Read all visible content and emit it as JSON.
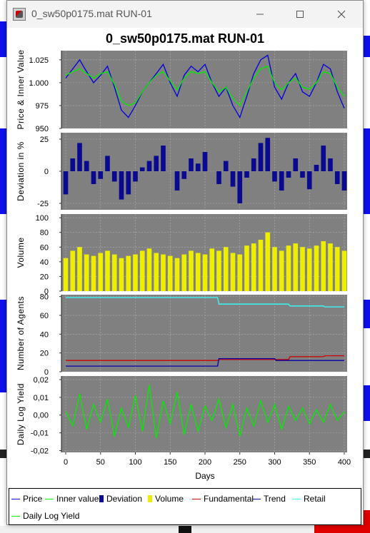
{
  "window": {
    "title": "0_sw50p0175.mat RUN-01",
    "minimize_icon": "minimize-icon",
    "maximize_icon": "maximize-icon",
    "close_icon": "close-icon"
  },
  "colors": {
    "plot_bg": "#808080",
    "price": "#0000dd",
    "inner": "#00ee00",
    "deviation": "#0a0a90",
    "volume": "#eeee00",
    "fundamental": "#cc0000",
    "trend": "#0000aa",
    "retail": "#33ffff",
    "yield": "#00ee00"
  },
  "legend": [
    {
      "label": "Price",
      "color": "#0000dd",
      "kind": "line"
    },
    {
      "label": "Inner value",
      "color": "#00ee00",
      "kind": "line"
    },
    {
      "label": "Deviation",
      "color": "#0a0a90",
      "kind": "box"
    },
    {
      "label": "Volume",
      "color": "#eeee00",
      "kind": "box"
    },
    {
      "label": "Fundamental",
      "color": "#cc0000",
      "kind": "line"
    },
    {
      "label": "Trend",
      "color": "#0000aa",
      "kind": "line"
    },
    {
      "label": "Retail",
      "color": "#33ffff",
      "kind": "line"
    },
    {
      "label": "Daily Log Yield",
      "color": "#00ee00",
      "kind": "line"
    }
  ],
  "chart_data": {
    "title": "0_sw50p0175.mat RUN-01",
    "xlabel": "Days",
    "xlim": [
      0,
      400
    ],
    "x_ticks": [
      "0",
      "50",
      "100",
      "150",
      "200",
      "250",
      "300",
      "350",
      "400"
    ],
    "grid": true,
    "panels": [
      {
        "id": "price",
        "type": "line",
        "ylabel": "Price & Inner Value",
        "ylim": [
          950,
          1035
        ],
        "y_ticks": [
          "1.025",
          "1.000",
          "975",
          "950"
        ],
        "y_tick_values": [
          1025,
          1000,
          975,
          950
        ],
        "series": [
          {
            "name": "Price",
            "color": "#0000dd",
            "x": [
              0,
              10,
              20,
              30,
              40,
              50,
              60,
              70,
              80,
              90,
              100,
              110,
              120,
              130,
              140,
              150,
              160,
              170,
              180,
              190,
              200,
              210,
              220,
              230,
              240,
              250,
              260,
              270,
              280,
              290,
              300,
              310,
              320,
              330,
              340,
              350,
              360,
              370,
              380,
              390,
              400
            ],
            "values": [
              1005,
              1015,
              1025,
              1012,
              1000,
              1008,
              1018,
              995,
              970,
              962,
              975,
              990,
              1000,
              1010,
              1020,
              1000,
              985,
              1008,
              1018,
              1012,
              1020,
              1000,
              985,
              995,
              975,
              962,
              985,
              1010,
              1025,
              1030,
              995,
              982,
              1000,
              1010,
              990,
              985,
              1000,
              1020,
              1015,
              990,
              972
            ]
          },
          {
            "name": "Inner value",
            "color": "#00ee00",
            "x": [
              0,
              10,
              20,
              30,
              40,
              50,
              60,
              70,
              80,
              90,
              100,
              110,
              120,
              130,
              140,
              150,
              160,
              170,
              180,
              190,
              200,
              210,
              220,
              230,
              240,
              250,
              260,
              270,
              280,
              290,
              300,
              310,
              320,
              330,
              340,
              350,
              360,
              370,
              380,
              390,
              400
            ],
            "values": [
              1008,
              1012,
              1015,
              1010,
              1005,
              1010,
              1012,
              998,
              980,
              975,
              978,
              990,
              1000,
              1008,
              1012,
              1002,
              992,
              1005,
              1012,
              1010,
              1012,
              1000,
              990,
              995,
              983,
              975,
              990,
              1005,
              1015,
              1018,
              1000,
              992,
              1000,
              1005,
              995,
              993,
              1000,
              1012,
              1010,
              995,
              985
            ]
          }
        ]
      },
      {
        "id": "deviation",
        "type": "bar",
        "ylabel": "Deviation in %",
        "ylim": [
          -30,
          30
        ],
        "y_ticks": [
          "25",
          "0",
          "-25"
        ],
        "y_tick_values": [
          25,
          0,
          -25
        ],
        "series": [
          {
            "name": "Deviation",
            "color": "#0a0a90",
            "x": [
              0,
              10,
              20,
              30,
              40,
              50,
              60,
              70,
              80,
              90,
              100,
              110,
              120,
              130,
              140,
              150,
              160,
              170,
              180,
              190,
              200,
              210,
              220,
              230,
              240,
              250,
              260,
              270,
              280,
              290,
              300,
              310,
              320,
              330,
              340,
              350,
              360,
              370,
              380,
              390,
              400
            ],
            "values": [
              -18,
              10,
              22,
              8,
              -10,
              -6,
              12,
              -8,
              -22,
              -18,
              -8,
              3,
              8,
              12,
              20,
              0,
              -15,
              -6,
              10,
              6,
              15,
              0,
              -10,
              8,
              -12,
              -25,
              -5,
              10,
              22,
              26,
              -8,
              -15,
              -5,
              10,
              -5,
              -14,
              5,
              20,
              10,
              -10,
              -15
            ]
          }
        ]
      },
      {
        "id": "volume",
        "type": "bar",
        "ylabel": "Volume",
        "ylim": [
          0,
          105
        ],
        "y_ticks": [
          "100",
          "80",
          "60",
          "40",
          "20",
          "0"
        ],
        "y_tick_values": [
          100,
          80,
          60,
          40,
          20,
          0
        ],
        "series": [
          {
            "name": "Volume",
            "color": "#eeee00",
            "x": [
              0,
              10,
              20,
              30,
              40,
              50,
              60,
              70,
              80,
              90,
              100,
              110,
              120,
              130,
              140,
              150,
              160,
              170,
              180,
              190,
              200,
              210,
              220,
              230,
              240,
              250,
              260,
              270,
              280,
              290,
              300,
              310,
              320,
              330,
              340,
              350,
              360,
              370,
              380,
              390,
              400
            ],
            "values": [
              45,
              55,
              60,
              50,
              48,
              52,
              55,
              50,
              45,
              48,
              50,
              55,
              58,
              52,
              50,
              48,
              45,
              50,
              55,
              52,
              50,
              58,
              55,
              60,
              52,
              50,
              62,
              65,
              70,
              80,
              60,
              55,
              62,
              65,
              60,
              58,
              62,
              68,
              65,
              60,
              55
            ]
          }
        ]
      },
      {
        "id": "agents",
        "type": "line",
        "ylabel": "Number of Agents",
        "ylim": [
          0,
          82
        ],
        "y_ticks": [
          "80",
          "60",
          "40",
          "20",
          "0"
        ],
        "y_tick_values": [
          80,
          60,
          40,
          20,
          0
        ],
        "series": [
          {
            "name": "Fundamental",
            "color": "#cc0000",
            "x": [
              0,
              218,
              220,
              320,
              322,
              370,
              372,
              400
            ],
            "values": [
              12,
              12,
              13,
              13,
              16,
              16,
              17,
              17
            ]
          },
          {
            "name": "Trend",
            "color": "#0000aa",
            "x": [
              0,
              218,
              220,
              300,
              302,
              400
            ],
            "values": [
              6,
              6,
              14,
              14,
              12,
              12
            ]
          },
          {
            "name": "Retail",
            "color": "#33ffff",
            "x": [
              0,
              218,
              220,
              320,
              322,
              370,
              372,
              400
            ],
            "values": [
              79,
              79,
              72,
              72,
              70,
              70,
              69,
              69
            ]
          }
        ]
      },
      {
        "id": "yield",
        "type": "line",
        "ylabel": "Daily Log Yield",
        "ylim": [
          -0.021,
          0.022
        ],
        "y_ticks": [
          "0,02",
          "0,01",
          "0,00",
          "-0,01",
          "-0,02"
        ],
        "y_tick_values": [
          0.02,
          0.01,
          0.0,
          -0.01,
          -0.02
        ],
        "series": [
          {
            "name": "Daily Log Yield",
            "color": "#00ee00",
            "x": [
              0,
              10,
              20,
              30,
              40,
              50,
              60,
              70,
              80,
              90,
              100,
              110,
              120,
              130,
              140,
              150,
              160,
              170,
              180,
              190,
              200,
              210,
              220,
              230,
              240,
              250,
              260,
              270,
              280,
              290,
              300,
              310,
              320,
              330,
              340,
              350,
              360,
              370,
              380,
              390,
              400
            ],
            "values": [
              0.002,
              -0.006,
              0.012,
              -0.008,
              0.006,
              -0.004,
              0.009,
              -0.012,
              0.004,
              -0.007,
              0.011,
              -0.009,
              0.017,
              -0.013,
              0.008,
              -0.005,
              0.013,
              -0.011,
              0.006,
              -0.009,
              0.005,
              -0.003,
              0.009,
              -0.007,
              0.006,
              -0.012,
              0.004,
              -0.006,
              0.008,
              -0.004,
              0.006,
              -0.008,
              0.005,
              -0.003,
              0.004,
              -0.005,
              0.003,
              -0.004,
              0.006,
              -0.003,
              0.002
            ]
          }
        ]
      }
    ]
  }
}
